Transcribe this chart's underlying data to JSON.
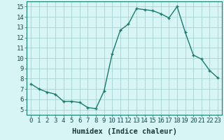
{
  "x": [
    0,
    1,
    2,
    3,
    4,
    5,
    6,
    7,
    8,
    9,
    10,
    11,
    12,
    13,
    14,
    15,
    16,
    17,
    18,
    19,
    20,
    21,
    22,
    23
  ],
  "y": [
    7.5,
    7.0,
    6.7,
    6.5,
    5.8,
    5.8,
    5.7,
    5.2,
    5.1,
    6.8,
    10.4,
    12.7,
    13.3,
    14.8,
    14.7,
    14.6,
    14.3,
    13.9,
    15.0,
    12.5,
    10.3,
    9.9,
    8.8,
    8.1
  ],
  "line_color": "#1a7a6e",
  "marker": "+",
  "bg_color": "#d8f5f5",
  "grid_color": "#a0cccc",
  "xlabel": "Humidex (Indice chaleur)",
  "xlim": [
    -0.5,
    23.5
  ],
  "ylim": [
    4.5,
    15.5
  ],
  "yticks": [
    5,
    6,
    7,
    8,
    9,
    10,
    11,
    12,
    13,
    14,
    15
  ],
  "xticks": [
    0,
    1,
    2,
    3,
    4,
    5,
    6,
    7,
    8,
    9,
    10,
    11,
    12,
    13,
    14,
    15,
    16,
    17,
    18,
    19,
    20,
    21,
    22,
    23
  ],
  "xlabel_fontsize": 7.5,
  "tick_fontsize": 6.5
}
